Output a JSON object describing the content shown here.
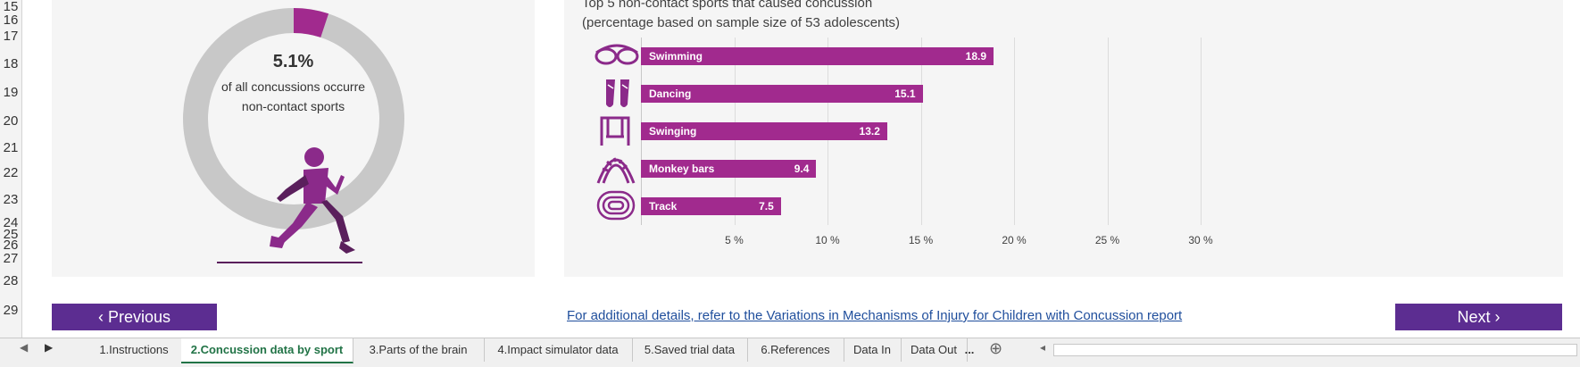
{
  "rows": [
    "15",
    "16",
    "17",
    "18",
    "19",
    "20",
    "21",
    "22",
    "23",
    "24",
    "25",
    "26",
    "27",
    "28",
    "29"
  ],
  "donut": {
    "percent_label": "5.1%",
    "caption_line1": "of all concussions occurre",
    "caption_line2": "non-contact sports",
    "value_fraction": 0.051,
    "colors": {
      "ring": "#c8c8c8",
      "highlight": "#a12a8e",
      "figure": "#8b2a8a",
      "shadow": "#5a1f5c"
    }
  },
  "chart_data": {
    "type": "bar",
    "title": "Top 5 non-contact sports that caused concussion",
    "subtitle": "(percentage based on sample size of 53 adolescents)",
    "categories": [
      "Swimming",
      "Dancing",
      "Swinging",
      "Monkey bars",
      "Track"
    ],
    "values": [
      18.9,
      15.1,
      13.2,
      9.4,
      7.5
    ],
    "icons": [
      "goggles-icon",
      "ballet-shoes-icon",
      "swing-icon",
      "monkey-bars-icon",
      "running-track-icon"
    ],
    "x_ticks": [
      "5 %",
      "10 %",
      "15 %",
      "20 %",
      "25 %",
      "30 %"
    ],
    "xlim": [
      0,
      30
    ],
    "grid": true,
    "bar_color": "#a12a8e"
  },
  "nav": {
    "previous_label": "‹ Previous",
    "next_label": "Next ›",
    "report_link": "For additional details, refer to the Variations in Mechanisms of Injury for Children with Concussion report",
    "button_color": "#5c2d91"
  },
  "tabs": [
    {
      "label": "1.Instructions",
      "active": false
    },
    {
      "label": "2.Concussion data by sport",
      "active": true
    },
    {
      "label": "3.Parts of the brain",
      "active": false
    },
    {
      "label": "4.Impact simulator data",
      "active": false
    },
    {
      "label": "5.Saved trial data",
      "active": false
    },
    {
      "label": "6.References",
      "active": false
    },
    {
      "label": "Data In",
      "active": false
    },
    {
      "label": "Data Out",
      "active": false
    }
  ],
  "tab_overflow": "...",
  "add_sheet": "⊕"
}
